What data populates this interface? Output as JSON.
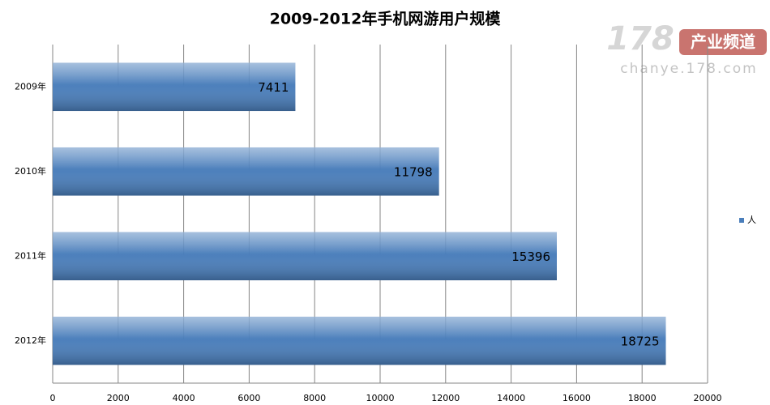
{
  "chart_data": {
    "type": "bar",
    "orientation": "horizontal",
    "title": "2009-2012年手机网游用户规模",
    "categories": [
      "2009年",
      "2010年",
      "2011年",
      "2012年"
    ],
    "series": [
      {
        "name": "人",
        "color": "#4a7ebb",
        "values": [
          7411,
          11798,
          15396,
          18725
        ]
      }
    ],
    "xlim": [
      0,
      20000
    ],
    "xticks": [
      0,
      2000,
      4000,
      6000,
      8000,
      10000,
      12000,
      14000,
      16000,
      18000,
      20000
    ],
    "grid": true,
    "legend": "right",
    "watermark": {
      "logo": "178",
      "label": "产业频道",
      "url": "chanye.178.com"
    }
  }
}
